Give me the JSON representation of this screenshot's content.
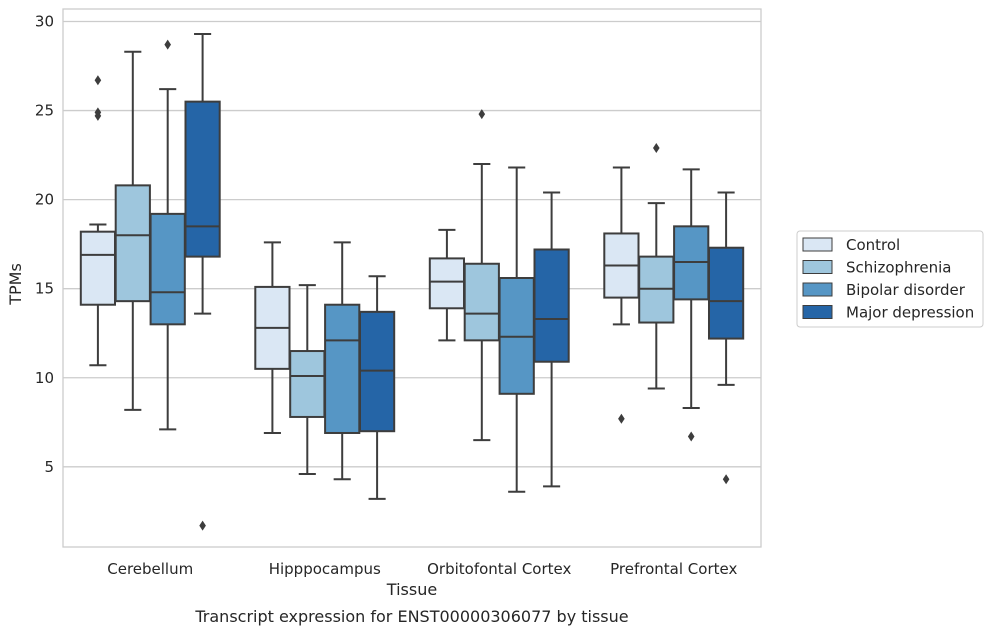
{
  "chart_data": {
    "type": "box",
    "title": "Transcript expression for ENST00000306077 by tissue",
    "xlabel": "Tissue",
    "ylabel": "TPMs",
    "ylim": [
      0.5,
      30.7
    ],
    "yticks": [
      5,
      10,
      15,
      20,
      25,
      30
    ],
    "grid": "horizontal",
    "legend_position": "right",
    "categories": [
      "Cerebellum",
      "Hipppocampus",
      "Orbitofontal Cortex",
      "Prefrontal Cortex"
    ],
    "series": [
      {
        "name": "Control",
        "color": "#dae7f4",
        "boxes": [
          {
            "whislo": 10.7,
            "q1": 14.1,
            "med": 16.9,
            "q3": 18.2,
            "whishi": 18.6,
            "fliers": [
              26.7,
              24.9,
              24.7
            ]
          },
          {
            "whislo": 6.9,
            "q1": 10.5,
            "med": 12.8,
            "q3": 15.1,
            "whishi": 17.6,
            "fliers": []
          },
          {
            "whislo": 12.1,
            "q1": 13.9,
            "med": 15.4,
            "q3": 16.7,
            "whishi": 18.3,
            "fliers": []
          },
          {
            "whislo": 13.0,
            "q1": 14.5,
            "med": 16.3,
            "q3": 18.1,
            "whishi": 21.8,
            "fliers": [
              7.7
            ]
          }
        ]
      },
      {
        "name": "Schizophrenia",
        "color": "#9ec6dd",
        "boxes": [
          {
            "whislo": 8.2,
            "q1": 14.3,
            "med": 18.0,
            "q3": 20.8,
            "whishi": 28.3,
            "fliers": []
          },
          {
            "whislo": 4.6,
            "q1": 7.8,
            "med": 10.1,
            "q3": 11.5,
            "whishi": 15.2,
            "fliers": []
          },
          {
            "whislo": 6.5,
            "q1": 12.1,
            "med": 13.6,
            "q3": 16.4,
            "whishi": 22.0,
            "fliers": [
              24.8
            ]
          },
          {
            "whislo": 9.4,
            "q1": 13.1,
            "med": 15.0,
            "q3": 16.8,
            "whishi": 19.8,
            "fliers": [
              22.9
            ]
          }
        ]
      },
      {
        "name": "Bipolar disorder",
        "color": "#5696c5",
        "boxes": [
          {
            "whislo": 7.1,
            "q1": 13.0,
            "med": 14.8,
            "q3": 19.2,
            "whishi": 26.2,
            "fliers": [
              28.7
            ]
          },
          {
            "whislo": 4.3,
            "q1": 6.9,
            "med": 12.1,
            "q3": 14.1,
            "whishi": 17.6,
            "fliers": []
          },
          {
            "whislo": 3.6,
            "q1": 9.1,
            "med": 12.3,
            "q3": 15.6,
            "whishi": 21.8,
            "fliers": []
          },
          {
            "whislo": 8.3,
            "q1": 14.4,
            "med": 16.5,
            "q3": 18.5,
            "whishi": 21.7,
            "fliers": [
              6.7
            ]
          }
        ]
      },
      {
        "name": "Major depression",
        "color": "#2565a7",
        "boxes": [
          {
            "whislo": 13.6,
            "q1": 16.8,
            "med": 18.5,
            "q3": 25.5,
            "whishi": 29.3,
            "fliers": [
              1.7
            ]
          },
          {
            "whislo": 3.2,
            "q1": 7.0,
            "med": 10.4,
            "q3": 13.7,
            "whishi": 15.7,
            "fliers": []
          },
          {
            "whislo": 3.9,
            "q1": 10.9,
            "med": 13.3,
            "q3": 17.2,
            "whishi": 20.4,
            "fliers": []
          },
          {
            "whislo": 9.6,
            "q1": 12.2,
            "med": 14.3,
            "q3": 17.3,
            "whishi": 20.4,
            "fliers": [
              4.3
            ]
          }
        ]
      }
    ]
  }
}
